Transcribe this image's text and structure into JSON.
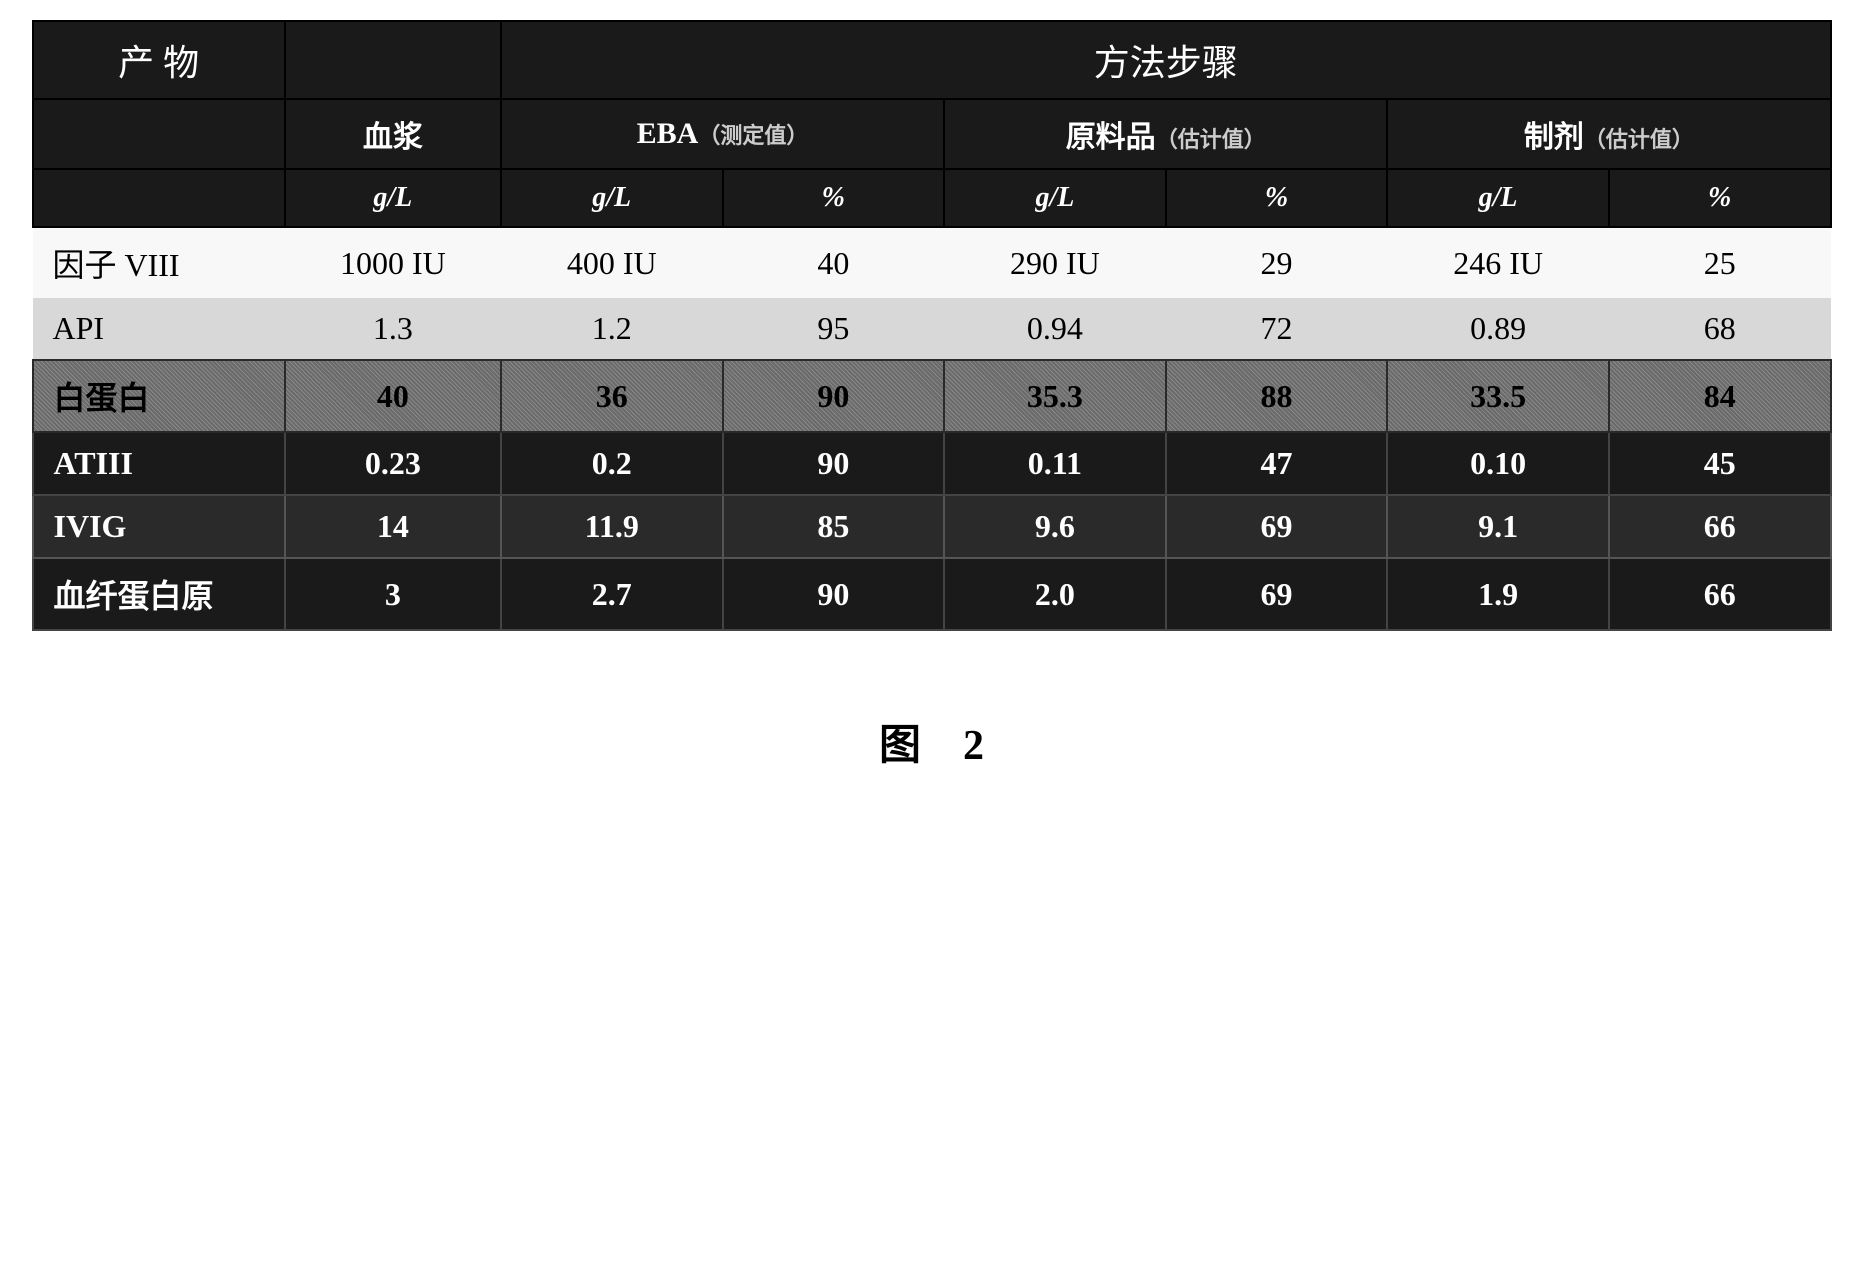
{
  "table": {
    "header_row1": {
      "product": "产 物",
      "blank": "",
      "method_steps": "方法步骤"
    },
    "header_row2": {
      "plasma": "血浆",
      "eba": "EBA",
      "eba_note": "（测定值）",
      "raw": "原料品",
      "raw_note": "（估计值）",
      "prep": "制剂",
      "prep_note": "（估计值）"
    },
    "units": {
      "u1": "g/L",
      "u2": "g/L",
      "u3": "%",
      "u4": "g/L",
      "u5": "%",
      "u6": "g/L",
      "u7": "%"
    },
    "rows": [
      {
        "style": "row-white",
        "label": "因子 VIII",
        "plasma": "1000 IU",
        "eba_gl": "400 IU",
        "eba_pct": "40",
        "raw_gl": "290 IU",
        "raw_pct": "29",
        "prep_gl": "246 IU",
        "prep_pct": "25"
      },
      {
        "style": "row-light-gray",
        "label": "API",
        "plasma": "1.3",
        "eba_gl": "1.2",
        "eba_pct": "95",
        "raw_gl": "0.94",
        "raw_pct": "72",
        "prep_gl": "0.89",
        "prep_pct": "68"
      },
      {
        "style": "row-textured",
        "label": "白蛋白",
        "plasma": "40",
        "eba_gl": "36",
        "eba_pct": "90",
        "raw_gl": "35.3",
        "raw_pct": "88",
        "prep_gl": "33.5",
        "prep_pct": "84"
      },
      {
        "style": "row-dark",
        "label": "ATIII",
        "plasma": "0.23",
        "eba_gl": "0.2",
        "eba_pct": "90",
        "raw_gl": "0.11",
        "raw_pct": "47",
        "prep_gl": "0.10",
        "prep_pct": "45"
      },
      {
        "style": "row-dark-textured",
        "label": "IVIG",
        "plasma": "14",
        "eba_gl": "11.9",
        "eba_pct": "85",
        "raw_gl": "9.6",
        "raw_pct": "69",
        "prep_gl": "9.1",
        "prep_pct": "66"
      },
      {
        "style": "row-dark",
        "label": "血纤蛋白原",
        "plasma": "3",
        "eba_gl": "2.7",
        "eba_pct": "90",
        "raw_gl": "2.0",
        "raw_pct": "69",
        "prep_gl": "1.9",
        "prep_pct": "66"
      }
    ]
  },
  "caption": {
    "label": "图",
    "number": "2"
  }
}
